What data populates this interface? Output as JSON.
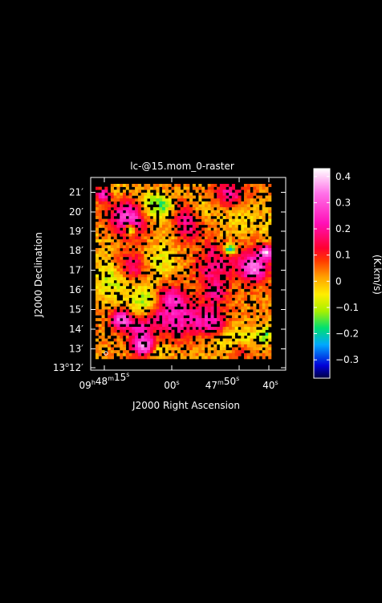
{
  "chart_data": {
    "type": "heatmap",
    "title": "lc-@15.mom_0-raster",
    "xlabel": "J2000 Right Ascension",
    "ylabel": "J2000 Declination",
    "colorbar_label": "(K.km/s)",
    "x_ticks": [
      {
        "h": "09",
        "m": "48",
        "s": "15"
      },
      {
        "h": "",
        "m": "",
        "s": "00"
      },
      {
        "h": "",
        "m": "47",
        "s": "50"
      },
      {
        "h": "",
        "m": "",
        "s": "40"
      }
    ],
    "y_ticks": [
      {
        "deg": "13",
        "min": "12"
      },
      {
        "deg": "",
        "min": "13"
      },
      {
        "deg": "",
        "min": "14"
      },
      {
        "deg": "",
        "min": "15"
      },
      {
        "deg": "",
        "min": "16"
      },
      {
        "deg": "",
        "min": "17"
      },
      {
        "deg": "",
        "min": "18"
      },
      {
        "deg": "",
        "min": "19"
      },
      {
        "deg": "",
        "min": "20"
      },
      {
        "deg": "",
        "min": "21"
      }
    ],
    "colorbar_ticks": [
      "0.4",
      "0.3",
      "0.2",
      "0.1",
      "0",
      "−0.1",
      "−0.2",
      "−0.3"
    ],
    "colorbar_range": [
      -0.37,
      0.43
    ],
    "background": "#000000",
    "colors": {
      "frame": "#ffffff",
      "text": "#ffffff"
    }
  }
}
